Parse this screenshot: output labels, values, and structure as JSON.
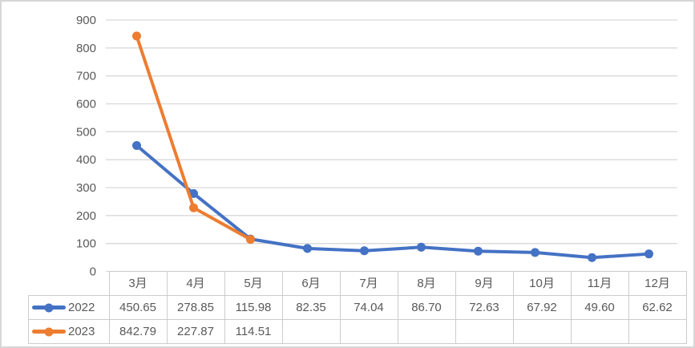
{
  "frame": {
    "background": "#ffffff",
    "border_color": "#d6d6d6"
  },
  "axis": {
    "text_color": "#595959",
    "gridline_color": "#d9d9d9",
    "tick_labels": [
      "0",
      "100",
      "200",
      "300",
      "400",
      "500",
      "600",
      "700",
      "800",
      "900"
    ]
  },
  "table": {
    "border_color": "#cccccc",
    "text_color": "#595959",
    "corner_label": "",
    "value_format": "0.00",
    "empty_cell": ""
  },
  "chart_data": {
    "type": "line",
    "title": "",
    "xlabel": "",
    "ylabel": "",
    "categories": [
      "3月",
      "4月",
      "5月",
      "6月",
      "7月",
      "8月",
      "9月",
      "10月",
      "11月",
      "12月"
    ],
    "series": [
      {
        "name": "2022",
        "color": "#4472c4",
        "values": [
          450.65,
          278.85,
          115.98,
          82.35,
          74.04,
          86.7,
          72.63,
          67.92,
          49.6,
          62.62
        ]
      },
      {
        "name": "2023",
        "color": "#ed7d31",
        "values": [
          842.79,
          227.87,
          114.51,
          null,
          null,
          null,
          null,
          null,
          null,
          null
        ]
      }
    ],
    "ylim": [
      0,
      900
    ],
    "ytick_interval": 100,
    "grid": "horizontal-only",
    "legend_position": "data-table-left",
    "marker": "circle"
  }
}
